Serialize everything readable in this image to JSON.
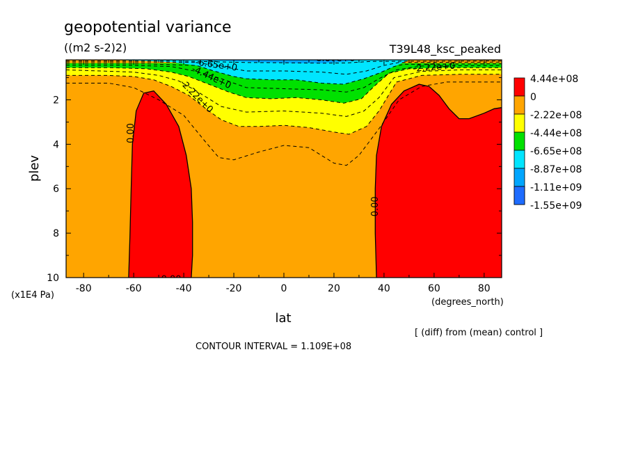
{
  "chart_data": {
    "type": "heatmap",
    "title": "geopotential variance",
    "subtitle": "((m2 s-2)2)",
    "run_name": "T39L48_ksc_peaked",
    "xlabel": "lat",
    "xunits": "(degrees_north)",
    "ylabel": "plev",
    "yunits": "(x1E4 Pa)",
    "xlim": [
      -87,
      87
    ],
    "ylim": [
      10,
      0.2
    ],
    "xticks": [
      -80,
      -60,
      -40,
      -20,
      0,
      20,
      40,
      60,
      80
    ],
    "xticklabels": [
      "-80",
      "-60",
      "-40",
      "-20",
      "0",
      "20",
      "40",
      "60",
      "80"
    ],
    "yticks": [
      2,
      4,
      6,
      8,
      10
    ],
    "yticklabels": [
      "2",
      "4",
      "6",
      "8",
      "10"
    ],
    "note": "[ (diff) from (mean) control ]",
    "contour_interval": "CONTOUR INTERVAL = 1.109E+08",
    "legend": {
      "placement": "right",
      "levels": [
        {
          "label": "4.44e+08",
          "color": "#ff0000"
        },
        {
          "label": "0",
          "color": "#ffa500"
        },
        {
          "label": "-2.22e+08",
          "color": "#ffff00"
        },
        {
          "label": "-4.44e+08",
          "color": "#00e100"
        },
        {
          "label": "-6.65e+08",
          "color": "#00e5ff"
        },
        {
          "label": "-8.87e+08",
          "color": "#00a6ff"
        },
        {
          "label": "-1.11e+09",
          "color": "#1e6cff"
        },
        {
          "label": "-1.55e+09",
          "color": ""
        }
      ]
    },
    "regions": [
      {
        "name": "positive-south",
        "color": "#ff0000",
        "points": [
          [
            -62,
            10
          ],
          [
            -61.5,
            8.2
          ],
          [
            -61,
            6
          ],
          [
            -60.5,
            4
          ],
          [
            -59,
            2.5
          ],
          [
            -56,
            1.7
          ],
          [
            -52,
            1.6
          ],
          [
            -47,
            2.2
          ],
          [
            -42,
            3.2
          ],
          [
            -39,
            4.5
          ],
          [
            -37,
            6
          ],
          [
            -36.5,
            7.5
          ],
          [
            -36.5,
            9
          ],
          [
            -37,
            10
          ]
        ]
      },
      {
        "name": "positive-north",
        "color": "#ff0000",
        "points": [
          [
            37,
            10
          ],
          [
            36.5,
            8
          ],
          [
            36.5,
            6
          ],
          [
            37,
            4.5
          ],
          [
            39,
            3.2
          ],
          [
            43,
            2.2
          ],
          [
            48,
            1.6
          ],
          [
            54,
            1.3
          ],
          [
            58,
            1.4
          ],
          [
            62,
            1.8
          ],
          [
            66,
            2.4
          ],
          [
            70,
            2.85
          ],
          [
            74,
            2.85
          ],
          [
            80,
            2.6
          ],
          [
            84,
            2.4
          ],
          [
            87,
            2.35
          ],
          [
            87,
            10
          ]
        ]
      },
      {
        "name": "band-yellow",
        "color": "#ffff00",
        "points": [
          [
            -87,
            0.5
          ],
          [
            -60,
            0.5
          ],
          [
            -40,
            0.5
          ],
          [
            -30,
            0.6
          ],
          [
            0,
            0.5
          ],
          [
            30,
            0.6
          ],
          [
            50,
            0.5
          ],
          [
            87,
            0.5
          ],
          [
            87,
            0.85
          ],
          [
            70,
            0.85
          ],
          [
            55,
            0.9
          ],
          [
            45,
            1.2
          ],
          [
            38,
            2.5
          ],
          [
            33,
            3.2
          ],
          [
            26,
            3.55
          ],
          [
            20,
            3.45
          ],
          [
            10,
            3.25
          ],
          [
            0,
            3.15
          ],
          [
            -10,
            3.2
          ],
          [
            -18,
            3.2
          ],
          [
            -25,
            2.9
          ],
          [
            -30,
            2.5
          ],
          [
            -38,
            1.8
          ],
          [
            -45,
            1.4
          ],
          [
            -52,
            1.1
          ],
          [
            -60,
            0.95
          ],
          [
            -70,
            0.9
          ],
          [
            -87,
            0.9
          ]
        ]
      },
      {
        "name": "band-green",
        "color": "#00e100",
        "points": [
          [
            -87,
            0.35
          ],
          [
            -40,
            0.35
          ],
          [
            0,
            0.35
          ],
          [
            40,
            0.35
          ],
          [
            87,
            0.35
          ],
          [
            87,
            0.55
          ],
          [
            65,
            0.55
          ],
          [
            50,
            0.6
          ],
          [
            42,
            0.8
          ],
          [
            36,
            1.4
          ],
          [
            31,
            1.95
          ],
          [
            24,
            2.15
          ],
          [
            15,
            2.0
          ],
          [
            5,
            1.9
          ],
          [
            -5,
            1.95
          ],
          [
            -15,
            1.9
          ],
          [
            -22,
            1.65
          ],
          [
            -30,
            1.3
          ],
          [
            -38,
            0.95
          ],
          [
            -45,
            0.75
          ],
          [
            -55,
            0.6
          ],
          [
            -70,
            0.55
          ],
          [
            -87,
            0.55
          ]
        ]
      },
      {
        "name": "band-cyan",
        "color": "#00e5ff",
        "points": [
          [
            -70,
            0.2
          ],
          [
            50,
            0.2
          ],
          [
            48,
            0.3
          ],
          [
            44,
            0.5
          ],
          [
            38,
            0.8
          ],
          [
            32,
            1.05
          ],
          [
            24,
            1.3
          ],
          [
            15,
            1.25
          ],
          [
            5,
            1.1
          ],
          [
            -5,
            1.1
          ],
          [
            -15,
            1.05
          ],
          [
            -20,
            0.95
          ],
          [
            -28,
            0.7
          ],
          [
            -35,
            0.45
          ],
          [
            -45,
            0.3
          ],
          [
            -55,
            0.25
          ],
          [
            -70,
            0.2
          ]
        ]
      },
      {
        "name": "band-blue",
        "color": "#00a6ff",
        "points": [
          [
            -45,
            0.2
          ],
          [
            30,
            0.2
          ],
          [
            25,
            0.28
          ],
          [
            15,
            0.35
          ],
          [
            5,
            0.35
          ],
          [
            -5,
            0.32
          ],
          [
            -15,
            0.28
          ],
          [
            -25,
            0.24
          ],
          [
            -45,
            0.2
          ]
        ]
      }
    ],
    "contours": [
      {
        "name": "contour-zero-south",
        "style": "solid",
        "points": [
          [
            -62,
            10
          ],
          [
            -61.5,
            8.2
          ],
          [
            -61,
            6
          ],
          [
            -60.5,
            4
          ],
          [
            -59,
            2.5
          ],
          [
            -56,
            1.7
          ],
          [
            -52,
            1.6
          ],
          [
            -47,
            2.2
          ],
          [
            -42,
            3.2
          ],
          [
            -39,
            4.5
          ],
          [
            -37,
            6
          ],
          [
            -36.5,
            7.5
          ],
          [
            -36.5,
            9
          ],
          [
            -37,
            10
          ]
        ]
      },
      {
        "name": "contour-zero-north",
        "style": "solid",
        "points": [
          [
            37,
            10
          ],
          [
            36.5,
            8
          ],
          [
            36.5,
            6
          ],
          [
            37,
            4.5
          ],
          [
            39,
            3.2
          ],
          [
            43,
            2.2
          ],
          [
            48,
            1.6
          ],
          [
            54,
            1.3
          ],
          [
            58,
            1.4
          ],
          [
            62,
            1.8
          ],
          [
            66,
            2.4
          ],
          [
            70,
            2.85
          ],
          [
            74,
            2.85
          ],
          [
            80,
            2.6
          ],
          [
            84,
            2.4
          ],
          [
            87,
            2.35
          ]
        ]
      },
      {
        "name": "contour-minus-1.1",
        "style": "dashed",
        "points": [
          [
            -87,
            1.25
          ],
          [
            -70,
            1.25
          ],
          [
            -60,
            1.45
          ],
          [
            -50,
            2.0
          ],
          [
            -40,
            2.7
          ],
          [
            -32,
            3.8
          ],
          [
            -26,
            4.6
          ],
          [
            -20,
            4.7
          ],
          [
            -10,
            4.35
          ],
          [
            0,
            4.05
          ],
          [
            10,
            4.15
          ],
          [
            20,
            4.85
          ],
          [
            25,
            4.95
          ],
          [
            30,
            4.5
          ],
          [
            38,
            3.3
          ],
          [
            46,
            2.0
          ],
          [
            55,
            1.4
          ],
          [
            65,
            1.2
          ],
          [
            87,
            1.2
          ]
        ]
      },
      {
        "name": "contour-minus-2.2",
        "style": "dashed",
        "points": [
          [
            -87,
            0.9
          ],
          [
            -70,
            0.9
          ],
          [
            -60,
            0.95
          ],
          [
            -52,
            1.1
          ],
          [
            -45,
            1.4
          ],
          [
            -38,
            1.8
          ],
          [
            -30,
            2.5
          ],
          [
            -25,
            2.9
          ],
          [
            -18,
            3.2
          ],
          [
            -10,
            3.2
          ],
          [
            0,
            3.15
          ],
          [
            10,
            3.25
          ],
          [
            20,
            3.45
          ],
          [
            26,
            3.55
          ],
          [
            33,
            3.2
          ],
          [
            38,
            2.5
          ],
          [
            45,
            1.2
          ],
          [
            55,
            0.9
          ],
          [
            70,
            0.85
          ],
          [
            87,
            0.85
          ]
        ]
      },
      {
        "name": "contour-minus-3.3",
        "style": "dashed",
        "points": [
          [
            -87,
            0.65
          ],
          [
            -60,
            0.75
          ],
          [
            -50,
            0.9
          ],
          [
            -42,
            1.15
          ],
          [
            -35,
            1.6
          ],
          [
            -25,
            2.3
          ],
          [
            -15,
            2.55
          ],
          [
            0,
            2.5
          ],
          [
            15,
            2.6
          ],
          [
            25,
            2.75
          ],
          [
            32,
            2.5
          ],
          [
            38,
            1.9
          ],
          [
            44,
            1.0
          ],
          [
            55,
            0.72
          ],
          [
            70,
            0.65
          ],
          [
            87,
            0.65
          ]
        ]
      },
      {
        "name": "contour-minus-4.4",
        "style": "dashed",
        "points": [
          [
            -87,
            0.55
          ],
          [
            -70,
            0.55
          ],
          [
            -55,
            0.6
          ],
          [
            -45,
            0.75
          ],
          [
            -38,
            0.95
          ],
          [
            -30,
            1.3
          ],
          [
            -22,
            1.65
          ],
          [
            -15,
            1.9
          ],
          [
            -5,
            1.95
          ],
          [
            5,
            1.9
          ],
          [
            15,
            2.0
          ],
          [
            24,
            2.15
          ],
          [
            31,
            1.95
          ],
          [
            36,
            1.4
          ],
          [
            42,
            0.8
          ],
          [
            50,
            0.6
          ],
          [
            65,
            0.55
          ],
          [
            87,
            0.55
          ]
        ]
      },
      {
        "name": "contour-minus-5.5",
        "style": "dashed",
        "points": [
          [
            -87,
            0.45
          ],
          [
            -60,
            0.45
          ],
          [
            -45,
            0.5
          ],
          [
            -35,
            0.72
          ],
          [
            -25,
            1.05
          ],
          [
            -15,
            1.45
          ],
          [
            0,
            1.5
          ],
          [
            15,
            1.55
          ],
          [
            25,
            1.65
          ],
          [
            32,
            1.45
          ],
          [
            38,
            1.05
          ],
          [
            45,
            0.65
          ],
          [
            55,
            0.48
          ],
          [
            87,
            0.45
          ]
        ]
      },
      {
        "name": "contour-minus-6.6",
        "style": "dashed",
        "points": [
          [
            -87,
            0.38
          ],
          [
            -55,
            0.38
          ],
          [
            -45,
            0.42
          ],
          [
            -35,
            0.45
          ],
          [
            -28,
            0.7
          ],
          [
            -20,
            0.95
          ],
          [
            -15,
            1.05
          ],
          [
            -5,
            1.1
          ],
          [
            5,
            1.1
          ],
          [
            15,
            1.25
          ],
          [
            24,
            1.3
          ],
          [
            32,
            1.05
          ],
          [
            38,
            0.8
          ],
          [
            44,
            0.5
          ],
          [
            48,
            0.4
          ],
          [
            87,
            0.38
          ]
        ]
      },
      {
        "name": "contour-minus-7.7",
        "style": "dashed",
        "points": [
          [
            -87,
            0.3
          ],
          [
            -50,
            0.3
          ],
          [
            -35,
            0.32
          ],
          [
            -25,
            0.5
          ],
          [
            -15,
            0.7
          ],
          [
            0,
            0.7
          ],
          [
            15,
            0.75
          ],
          [
            25,
            0.85
          ],
          [
            33,
            0.7
          ],
          [
            40,
            0.45
          ],
          [
            46,
            0.32
          ],
          [
            87,
            0.3
          ]
        ]
      },
      {
        "name": "contour-minus-8.8",
        "style": "dashed",
        "points": [
          [
            -87,
            0.25
          ],
          [
            -45,
            0.25
          ],
          [
            -30,
            0.28
          ],
          [
            -15,
            0.32
          ],
          [
            0,
            0.33
          ],
          [
            15,
            0.35
          ],
          [
            25,
            0.34
          ],
          [
            35,
            0.27
          ],
          [
            87,
            0.25
          ]
        ]
      }
    ],
    "contour_labels": [
      {
        "text": "-8.87e+0",
        "x": 20,
        "y": 0.15,
        "rotation": 0
      },
      {
        "text": "-6.65e+0",
        "x": -27,
        "y": 0.45,
        "rotation": 8
      },
      {
        "text": "-2.22e+0",
        "x": 60,
        "y": 0.55,
        "rotation": -4
      },
      {
        "text": "-4.44e+0",
        "x": -29,
        "y": 1.0,
        "rotation": 25
      },
      {
        "text": "-2.22e+0",
        "x": -35,
        "y": 1.85,
        "rotation": 45
      },
      {
        "text": "0.00",
        "x": -61,
        "y": 3.5,
        "rotation": -90
      },
      {
        "text": "0.00",
        "x": 36.5,
        "y": 6.8,
        "rotation": -90
      },
      {
        "text": "0.00",
        "x": -45,
        "y": 10.1,
        "rotation": 0
      }
    ]
  }
}
